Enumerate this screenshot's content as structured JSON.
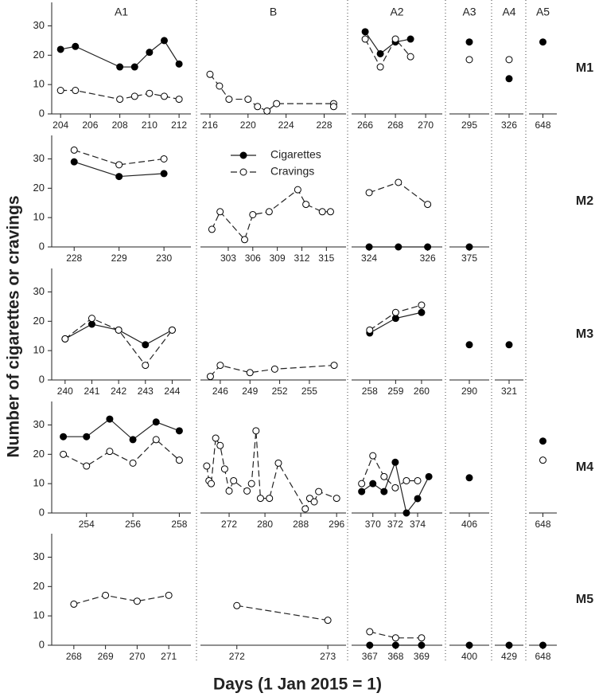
{
  "chart_data": {
    "type": "line",
    "y_label": "Number of cigarettes or cravings",
    "x_label": "Days (1 Jan 2015 = 1)",
    "phases": [
      "A1",
      "B",
      "A2",
      "A3",
      "A4",
      "A5"
    ],
    "series": [
      {
        "name": "Cigarettes",
        "color": "#000000",
        "linestyle": "solid"
      },
      {
        "name": "Cravings",
        "color": "#ffffff",
        "linestyle": "dashed"
      }
    ],
    "ylim": [
      0,
      38
    ],
    "yticks": [
      0,
      10,
      20,
      30
    ],
    "rows": [
      {
        "label": "M1",
        "panels": [
          {
            "xlim": [
              203.4,
              212.8
            ],
            "xticks": [
              204,
              206,
              208,
              210,
              212
            ],
            "cigarettes": {
              "x": [
                204,
                205,
                208,
                209,
                210,
                211,
                212
              ],
              "values": [
                22,
                23,
                16,
                16,
                21,
                25,
                17
              ]
            },
            "cravings": {
              "x": [
                204,
                205,
                208,
                209,
                210,
                211,
                212
              ],
              "values": [
                8,
                8,
                5,
                6,
                7,
                6,
                5
              ]
            }
          },
          {
            "xlim": [
              215,
              230.3
            ],
            "xticks": [
              216,
              220,
              224,
              228
            ],
            "cravings": {
              "x": [
                216,
                217,
                218,
                220,
                221,
                222,
                223,
                229,
                229
              ],
              "values": [
                13.5,
                9.5,
                5,
                5,
                2.5,
                1,
                3.5,
                3.5,
                2.5
              ]
            }
          },
          {
            "xlim": [
              265.1,
              271.1
            ],
            "xticks": [
              266,
              268,
              270
            ],
            "cigarettes": {
              "x": [
                266,
                267,
                268,
                269
              ],
              "values": [
                28,
                20.5,
                24.5,
                25.5
              ]
            },
            "cravings": {
              "x": [
                266,
                267,
                268,
                269
              ],
              "values": [
                25.5,
                16,
                25.5,
                19.5
              ]
            }
          },
          {
            "xlim": [
              294,
              296
            ],
            "xticks": [
              295
            ],
            "cigarettes": {
              "x": [
                295
              ],
              "values": [
                24.5
              ]
            },
            "cravings": {
              "x": [
                295
              ],
              "values": [
                18.5
              ]
            }
          },
          {
            "xlim": [
              325,
              327
            ],
            "xticks": [
              326
            ],
            "cigarettes": {
              "x": [
                326
              ],
              "values": [
                12
              ]
            },
            "cravings": {
              "x": [
                326
              ],
              "values": [
                18.5
              ]
            }
          },
          {
            "xlim": [
              647,
              649
            ],
            "xticks": [
              648
            ],
            "cigarettes": {
              "x": [
                648
              ],
              "values": [
                24.5
              ]
            }
          }
        ]
      },
      {
        "label": "M2",
        "panels": [
          {
            "xlim": [
              227.5,
              230.6
            ],
            "xticks": [
              228,
              229,
              230
            ],
            "cigarettes": {
              "x": [
                228,
                229,
                230
              ],
              "values": [
                29,
                24,
                25
              ]
            },
            "cravings": {
              "x": [
                228,
                229,
                230
              ],
              "values": [
                33,
                28,
                30
              ]
            }
          },
          {
            "xlim": [
              299.6,
              317.4
            ],
            "xticks": [
              303,
              306,
              309,
              312,
              315
            ],
            "cravings": {
              "x": [
                301,
                302,
                305,
                306,
                308,
                311.5,
                312.5,
                314.5,
                315.5
              ],
              "values": [
                6,
                12,
                2.5,
                11,
                12,
                19.5,
                14.5,
                12,
                12
              ]
            }
          },
          {
            "xlim": [
              323.4,
              326.5
            ],
            "xticks": [
              324,
              326
            ],
            "cigarettes": {
              "x": [
                324,
                325,
                326
              ],
              "values": [
                0,
                0,
                0
              ]
            },
            "cravings": {
              "x": [
                324,
                325,
                326
              ],
              "values": [
                18.5,
                22,
                14.5
              ]
            }
          },
          {
            "xlim": [
              374,
              376
            ],
            "xticks": [
              375
            ],
            "cigarettes": {
              "x": [
                375
              ],
              "values": [
                0
              ]
            }
          },
          null,
          null
        ]
      },
      {
        "label": "M3",
        "panels": [
          {
            "xlim": [
              239.5,
              244.7
            ],
            "xticks": [
              240,
              241,
              242,
              243,
              244
            ],
            "cigarettes": {
              "x": [
                240,
                241,
                242,
                243,
                244
              ],
              "values": [
                14,
                19,
                17,
                12,
                17
              ]
            },
            "cravings": {
              "x": [
                240,
                241,
                242,
                243,
                244
              ],
              "values": [
                14,
                21,
                17,
                5,
                17
              ]
            }
          },
          {
            "xlim": [
              244,
              258.7
            ],
            "xticks": [
              246,
              249,
              252,
              255
            ],
            "cravings": {
              "x": [
                245,
                246,
                249,
                251.5,
                257.5
              ],
              "values": [
                1.2,
                5,
                2.5,
                3.7,
                5
              ]
            }
          },
          {
            "xlim": [
              257.3,
              260.8
            ],
            "xticks": [
              258,
              259,
              260
            ],
            "cigarettes": {
              "x": [
                258,
                259,
                260
              ],
              "values": [
                16,
                21,
                23
              ]
            },
            "cravings": {
              "x": [
                258,
                259,
                260
              ],
              "values": [
                17,
                23,
                25.5
              ]
            }
          },
          {
            "xlim": [
              289,
              291
            ],
            "xticks": [
              290
            ],
            "cigarettes": {
              "x": [
                290
              ],
              "values": [
                12
              ]
            }
          },
          {
            "xlim": [
              320,
              322
            ],
            "xticks": [
              321
            ],
            "cigarettes": {
              "x": [
                321
              ],
              "values": [
                12
              ]
            }
          },
          null
        ]
      },
      {
        "label": "M4",
        "panels": [
          {
            "xlim": [
              252.5,
              258.5
            ],
            "xticks": [
              254,
              256,
              258
            ],
            "cigarettes": {
              "x": [
                253,
                254,
                255,
                256,
                257,
                258
              ],
              "values": [
                26,
                26,
                32,
                25,
                31,
                28
              ]
            },
            "cravings": {
              "x": [
                253,
                254,
                255,
                256,
                257,
                258
              ],
              "values": [
                20,
                16,
                21,
                17,
                25,
                18
              ]
            }
          },
          {
            "xlim": [
              265.6,
              298.1
            ],
            "xticks": [
              272,
              280,
              288,
              296
            ],
            "cravings": {
              "x": [
                267,
                267.5,
                268,
                269,
                270,
                271,
                272,
                273,
                276,
                277,
                278,
                279,
                281,
                283,
                289,
                290,
                291,
                292,
                296
              ],
              "values": [
                16,
                11,
                10,
                25.5,
                23,
                15,
                7.5,
                11,
                7.5,
                10,
                28,
                5,
                5,
                17,
                1.4,
                5,
                3.8,
                7.3,
                5
              ]
            }
          },
          {
            "xlim": [
              368.1,
              376.2
            ],
            "xticks": [
              370,
              372,
              374
            ],
            "cigarettes": {
              "x": [
                369,
                370,
                371,
                372,
                373,
                374,
                375
              ],
              "values": [
                7.3,
                10,
                7.3,
                17.3,
                0,
                4.9,
                12.4
              ]
            },
            "cravings": {
              "x": [
                369,
                370,
                371,
                372,
                373,
                374
              ],
              "values": [
                10,
                19.5,
                12.4,
                8.6,
                11,
                11
              ]
            }
          },
          {
            "xlim": [
              405,
              407
            ],
            "xticks": [
              406
            ],
            "cigarettes": {
              "x": [
                406
              ],
              "values": [
                12
              ]
            }
          },
          null,
          {
            "xlim": [
              647,
              649
            ],
            "xticks": [
              648
            ],
            "cigarettes": {
              "x": [
                648
              ],
              "values": [
                24.5
              ]
            },
            "cravings": {
              "x": [
                648
              ],
              "values": [
                18
              ]
            }
          }
        ]
      },
      {
        "label": "M5",
        "panels": [
          {
            "xlim": [
              267.3,
              271.7
            ],
            "xticks": [
              268,
              269,
              270,
              271
            ],
            "cravings": {
              "x": [
                268,
                269,
                270,
                271
              ],
              "values": [
                14,
                17,
                15,
                17
              ]
            }
          },
          {
            "xlim": [
              271.6,
              273.2
            ],
            "xticks": [
              272,
              273
            ],
            "cravings": {
              "x": [
                272,
                273
              ],
              "values": [
                13.5,
                8.5
              ]
            }
          },
          {
            "xlim": [
              366.3,
              369.8
            ],
            "xticks": [
              367,
              368,
              369
            ],
            "cigarettes": {
              "x": [
                367,
                368,
                369
              ],
              "values": [
                0,
                0,
                0
              ]
            },
            "cravings": {
              "x": [
                367,
                368,
                369
              ],
              "values": [
                4.6,
                2.5,
                2.5
              ]
            }
          },
          {
            "xlim": [
              399,
              401
            ],
            "xticks": [
              400
            ],
            "cigarettes": {
              "x": [
                400
              ],
              "values": [
                0
              ]
            }
          },
          {
            "xlim": [
              428,
              430
            ],
            "xticks": [
              429
            ],
            "cigarettes": {
              "x": [
                429
              ],
              "values": [
                0
              ]
            }
          },
          {
            "xlim": [
              647,
              649
            ],
            "xticks": [
              648
            ],
            "cigarettes": {
              "x": [
                648
              ],
              "values": [
                0
              ]
            }
          }
        ]
      }
    ]
  }
}
